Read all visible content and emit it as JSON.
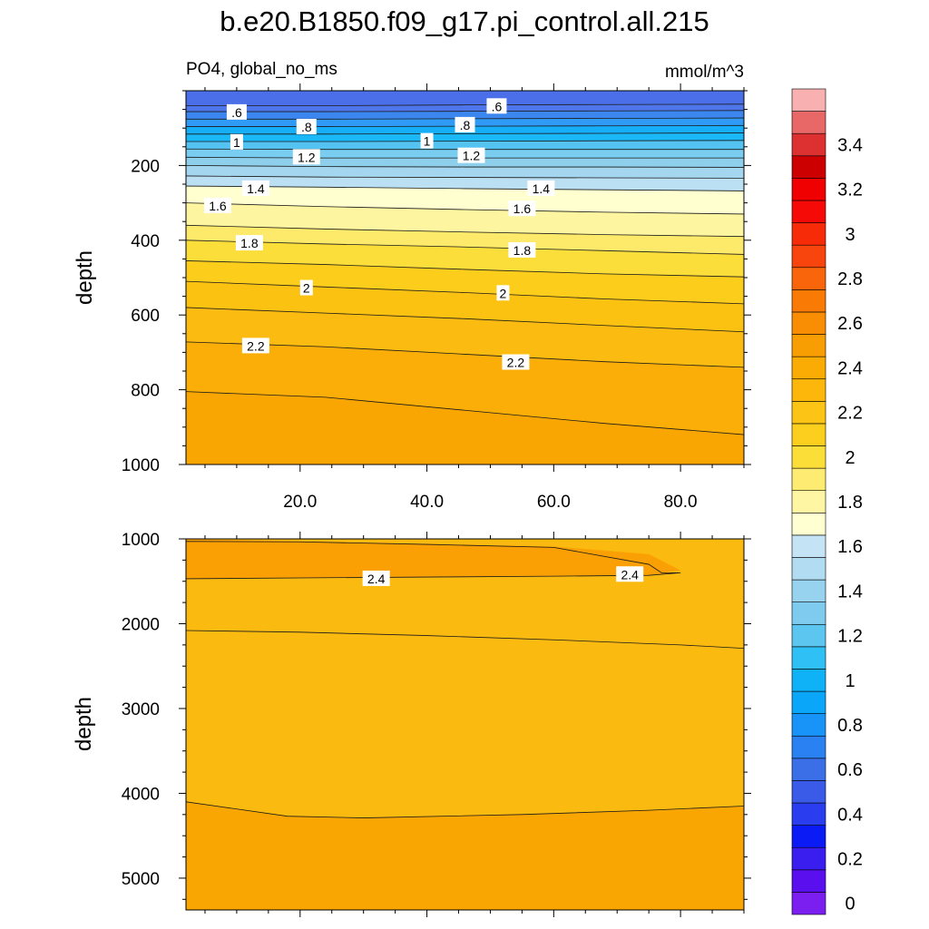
{
  "chart_data": {
    "type": "contour",
    "title": "b.e20.B1850.f09_g17.pi_control.all.215",
    "variable_label": "PO4, global_no_ms",
    "units_label": "mmol/m^3",
    "x_range": [
      2,
      90
    ],
    "x_ticks": [
      20,
      40,
      60,
      80
    ],
    "x_tick_labels": [
      "20.0",
      "40.0",
      "60.0",
      "80.0"
    ],
    "upper_panel": {
      "ylabel": "depth",
      "ylim": [
        0,
        1000
      ],
      "y_ticks": [
        200,
        400,
        600,
        800,
        1000
      ],
      "y_tick_labels": [
        "200",
        "400",
        "600",
        "800",
        "1000"
      ],
      "band_bottom_colors": [
        "#4a6fe8",
        "#4f75ea",
        "#3c86f0",
        "#2f9bf7",
        "#16aef8",
        "#1bb8f7",
        "#55c3f2",
        "#78cdf0",
        "#8ecfec",
        "#a4d7ef",
        "#bce0f3",
        "#ffffcf",
        "#fdf5a0",
        "#fde96a",
        "#fcde3a",
        "#fdcd1c",
        "#fcc212",
        "#fbbb10",
        "#fbae08",
        "#faa602"
      ],
      "contours": [
        {
          "value": 0.5,
          "depth": [
            40,
            40,
            38,
            37,
            36
          ]
        },
        {
          "value": 0.6,
          "depth": [
            56,
            56,
            55,
            54,
            53
          ]
        },
        {
          "value": 0.7,
          "depth": [
            76,
            76,
            75,
            74,
            73
          ]
        },
        {
          "value": 0.8,
          "depth": [
            96,
            96,
            95,
            94,
            93
          ]
        },
        {
          "value": 0.9,
          "depth": [
            116,
            116,
            115,
            114,
            113
          ]
        },
        {
          "value": 1.0,
          "depth": [
            136,
            136,
            135,
            134,
            133
          ]
        },
        {
          "value": 1.1,
          "depth": [
            156,
            157,
            157,
            157,
            157
          ]
        },
        {
          "value": 1.2,
          "depth": [
            178,
            180,
            180,
            180,
            180
          ]
        },
        {
          "value": 1.3,
          "depth": [
            200,
            203,
            204,
            204,
            205
          ]
        },
        {
          "value": 1.4,
          "depth": [
            228,
            231,
            232,
            233,
            234
          ]
        },
        {
          "value": 1.5,
          "depth": [
            255,
            258,
            262,
            265,
            268
          ]
        },
        {
          "value": 1.6,
          "depth": [
            300,
            310,
            318,
            325,
            330
          ]
        },
        {
          "value": 1.7,
          "depth": [
            360,
            370,
            378,
            385,
            390
          ]
        },
        {
          "value": 1.8,
          "depth": [
            400,
            410,
            418,
            428,
            438
          ]
        },
        {
          "value": 1.9,
          "depth": [
            455,
            465,
            478,
            490,
            498
          ]
        },
        {
          "value": 2.0,
          "depth": [
            510,
            525,
            540,
            557,
            570
          ]
        },
        {
          "value": 2.1,
          "depth": [
            580,
            595,
            610,
            628,
            645
          ]
        },
        {
          "value": 2.2,
          "depth": [
            672,
            685,
            705,
            725,
            740
          ]
        },
        {
          "value": 2.3,
          "depth": [
            805,
            820,
            855,
            890,
            920
          ]
        }
      ],
      "labels": [
        {
          "text": ".6",
          "x": 10,
          "depth": 58
        },
        {
          "text": ".6",
          "x": 51,
          "depth": 42
        },
        {
          "text": ".8",
          "x": 21,
          "depth": 97
        },
        {
          "text": ".8",
          "x": 46,
          "depth": 92
        },
        {
          "text": "1",
          "x": 10,
          "depth": 138
        },
        {
          "text": "1",
          "x": 40,
          "depth": 135
        },
        {
          "text": "1.2",
          "x": 21,
          "depth": 178
        },
        {
          "text": "1.2",
          "x": 47,
          "depth": 174
        },
        {
          "text": "1.4",
          "x": 13,
          "depth": 262
        },
        {
          "text": "1.4",
          "x": 58,
          "depth": 262
        },
        {
          "text": "1.6",
          "x": 7,
          "depth": 308
        },
        {
          "text": "1.6",
          "x": 55,
          "depth": 316
        },
        {
          "text": "1.8",
          "x": 12,
          "depth": 408
        },
        {
          "text": "1.8",
          "x": 55,
          "depth": 427
        },
        {
          "text": "2",
          "x": 21,
          "depth": 528
        },
        {
          "text": "2",
          "x": 52,
          "depth": 542
        },
        {
          "text": "2.2",
          "x": 13,
          "depth": 683
        },
        {
          "text": "2.2",
          "x": 54,
          "depth": 727
        }
      ]
    },
    "lower_panel": {
      "ylabel": "depth",
      "ylim": [
        1000,
        5375
      ],
      "y_ticks": [
        1000,
        2000,
        3000,
        4000,
        5000
      ],
      "y_tick_labels": [
        "1000",
        "2000",
        "3000",
        "4000",
        "5000"
      ],
      "background_color": "#fbba10",
      "region_24": {
        "color": "#fa9f04",
        "top_depth": [
          1000,
          1030,
          1060,
          1090,
          1180,
          1370
        ],
        "bottom_depth": [
          1470,
          1460,
          1450,
          1440,
          1430,
          1400
        ],
        "x": [
          2,
          20,
          40,
          60,
          75,
          80
        ]
      },
      "deep_band": {
        "color": "#faa602",
        "top_depth": [
          4100,
          4270,
          4290,
          4250,
          4200,
          4150
        ],
        "x": [
          2,
          18,
          30,
          55,
          75,
          90
        ]
      },
      "contour_2300": {
        "depth": [
          2080,
          2100,
          2140,
          2190,
          2250,
          2290
        ],
        "x": [
          2,
          20,
          40,
          60,
          80,
          90
        ]
      },
      "labels": [
        {
          "text": "2.4",
          "x": 32,
          "depth": 1470
        },
        {
          "text": "2.4",
          "x": 72,
          "depth": 1420
        }
      ]
    },
    "colorbar": {
      "levels": [
        "0",
        "0.2",
        "0.4",
        "0.6",
        "0.8",
        "1",
        "1.2",
        "1.4",
        "1.6",
        "1.8",
        "2",
        "2.2",
        "2.4",
        "2.6",
        "2.8",
        "3",
        "3.2",
        "3.4"
      ],
      "colors": [
        "#7a1ff0",
        "#5a10ee",
        "#3a1ef0",
        "#0b1bf5",
        "#2a3ef0",
        "#3a5ae8",
        "#3b6fe8",
        "#2a82f2",
        "#1894f8",
        "#0aa6fa",
        "#0fb2f7",
        "#2fc0f5",
        "#5cc6f1",
        "#7ecbef",
        "#97d2ee",
        "#b2dcf1",
        "#c4e3f4",
        "#ffffd2",
        "#fef6a2",
        "#fdec71",
        "#fcde38",
        "#fccf1e",
        "#fcc414",
        "#fcb70a",
        "#fbac04",
        "#f99e02",
        "#f98d03",
        "#f97a04",
        "#f8650a",
        "#f8450e",
        "#f72b08",
        "#f50a08",
        "#f00000",
        "#cc0000",
        "#dd3131",
        "#e86868",
        "#f8b0b0"
      ]
    }
  }
}
